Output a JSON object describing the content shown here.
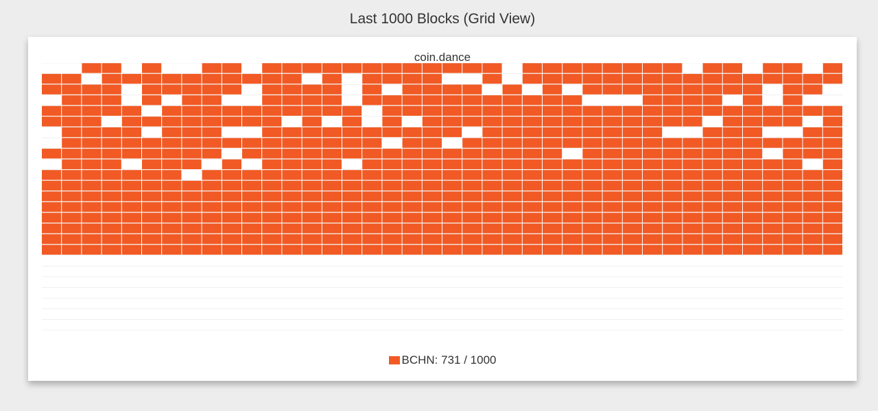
{
  "page_title": "Last 1000 Blocks (Grid View)",
  "chart_data": {
    "type": "heatmap",
    "title": "coin.dance",
    "columns": 40,
    "total_blocks": 1000,
    "series": [
      {
        "name": "BCHN",
        "count": 731,
        "color": "#f15a24"
      }
    ],
    "other_color": "#ffffff",
    "legend": {
      "label": "BCHN",
      "value": "731",
      "total": "1000",
      "placement": "bottom"
    },
    "cells": [
      0,
      0,
      1,
      1,
      0,
      1,
      0,
      0,
      1,
      1,
      0,
      1,
      1,
      1,
      1,
      1,
      1,
      1,
      1,
      1,
      1,
      1,
      1,
      0,
      1,
      1,
      1,
      1,
      1,
      1,
      1,
      1,
      0,
      1,
      1,
      0,
      1,
      1,
      0,
      1,
      1,
      1,
      0,
      1,
      1,
      1,
      1,
      1,
      1,
      1,
      1,
      1,
      1,
      0,
      1,
      0,
      1,
      1,
      1,
      1,
      0,
      0,
      1,
      0,
      1,
      1,
      1,
      1,
      1,
      1,
      1,
      1,
      1,
      1,
      1,
      1,
      1,
      1,
      1,
      1,
      1,
      1,
      1,
      1,
      0,
      1,
      1,
      1,
      1,
      1,
      0,
      1,
      1,
      1,
      1,
      0,
      1,
      0,
      1,
      1,
      1,
      1,
      0,
      1,
      0,
      1,
      0,
      1,
      1,
      1,
      1,
      1,
      1,
      1,
      1,
      1,
      0,
      1,
      1,
      0,
      0,
      1,
      1,
      1,
      0,
      1,
      0,
      1,
      1,
      0,
      0,
      1,
      1,
      1,
      1,
      0,
      1,
      1,
      1,
      1,
      1,
      1,
      1,
      1,
      1,
      1,
      1,
      0,
      0,
      0,
      1,
      1,
      1,
      1,
      0,
      1,
      0,
      1,
      0,
      0,
      1,
      1,
      1,
      1,
      1,
      0,
      1,
      1,
      1,
      1,
      1,
      1,
      1,
      1,
      1,
      1,
      0,
      1,
      1,
      1,
      1,
      1,
      1,
      1,
      1,
      1,
      1,
      1,
      1,
      1,
      1,
      1,
      1,
      1,
      1,
      1,
      1,
      1,
      1,
      1,
      1,
      1,
      1,
      0,
      1,
      1,
      1,
      1,
      1,
      1,
      1,
      1,
      0,
      1,
      0,
      1,
      0,
      1,
      0,
      1,
      1,
      1,
      1,
      1,
      1,
      1,
      1,
      1,
      1,
      1,
      1,
      1,
      1,
      0,
      1,
      1,
      1,
      1,
      0,
      1,
      0,
      1,
      1,
      1,
      1,
      0,
      1,
      1,
      1,
      0,
      0,
      1,
      1,
      1,
      1,
      1,
      1,
      1,
      1,
      1,
      1,
      0,
      1,
      1,
      1,
      1,
      1,
      1,
      1,
      1,
      1,
      0,
      0,
      1,
      1,
      1,
      0,
      0,
      1,
      1,
      0,
      1,
      1,
      1,
      1,
      1,
      1,
      1,
      1,
      1,
      1,
      1,
      1,
      1,
      1,
      1,
      1,
      0,
      1,
      1,
      0,
      1,
      1,
      1,
      1,
      1,
      1,
      1,
      1,
      1,
      1,
      1,
      1,
      1,
      1,
      1,
      1,
      1,
      1,
      1,
      1,
      1,
      1,
      1,
      1,
      1,
      1,
      1,
      1,
      0,
      1,
      1,
      1,
      1,
      1,
      1,
      1,
      1,
      1,
      1,
      1,
      1,
      1,
      1,
      1,
      1,
      0,
      1,
      1,
      1,
      1,
      1,
      1,
      1,
      1,
      1,
      0,
      1,
      1,
      1,
      0,
      1,
      1,
      1,
      0,
      1,
      1,
      1,
      0,
      1,
      0,
      1,
      1,
      1,
      1,
      0,
      1,
      1,
      1,
      1,
      1,
      1,
      1,
      1,
      1,
      1,
      1,
      1,
      1,
      1,
      1,
      1,
      1,
      1,
      1,
      1,
      1,
      1,
      0,
      1,
      1,
      1,
      1,
      1,
      1,
      1,
      1,
      0,
      1,
      1,
      1,
      1,
      1,
      1,
      1,
      1,
      1,
      1,
      1,
      1,
      1,
      1,
      1,
      1,
      1,
      1,
      1,
      1,
      1,
      1,
      1,
      1,
      1,
      1,
      1,
      1,
      1,
      1,
      1,
      1,
      1,
      1,
      1,
      1,
      1,
      1,
      1,
      1,
      1,
      1,
      1,
      1,
      1,
      1,
      1,
      1,
      1,
      1,
      1,
      1,
      1,
      1,
      1,
      1,
      1,
      1,
      1,
      1,
      1,
      1,
      1,
      1,
      1,
      1,
      1,
      1,
      1,
      1,
      1,
      1,
      1,
      1,
      1,
      1,
      1,
      1,
      1,
      1,
      1,
      1,
      1,
      1,
      1,
      1,
      1,
      1,
      1,
      1,
      1,
      1,
      1,
      1,
      1,
      1,
      1,
      1,
      1,
      1,
      1,
      1,
      1,
      1,
      1,
      1,
      1,
      1,
      1,
      1,
      1,
      1,
      1,
      1,
      1,
      1,
      1,
      1,
      1,
      1,
      1,
      1,
      1,
      1,
      1,
      1,
      1,
      1,
      1,
      1,
      1,
      1,
      1,
      1,
      1,
      1,
      1,
      1,
      1,
      1,
      1,
      1,
      1,
      1,
      1,
      1,
      1,
      1,
      1,
      1,
      1,
      1,
      1,
      1,
      1,
      1,
      1,
      1,
      1,
      1,
      1,
      1,
      1,
      1,
      1,
      1,
      1,
      1,
      1,
      1,
      1,
      1,
      1,
      1,
      1,
      1,
      1,
      1,
      1,
      1,
      1,
      1,
      1,
      1,
      1,
      1,
      1,
      1,
      1,
      1,
      1,
      1,
      1,
      1,
      1,
      1,
      1,
      1,
      1,
      1,
      1,
      1,
      1,
      1,
      1,
      1,
      1,
      1,
      1,
      1,
      1,
      1,
      1,
      1,
      1,
      1,
      1,
      1,
      1,
      1,
      1,
      1,
      1,
      1,
      1,
      1,
      1,
      1,
      1,
      1,
      1,
      1,
      1,
      1,
      1,
      1,
      1,
      1,
      1,
      1,
      1,
      1,
      1,
      1,
      1,
      1,
      1,
      1,
      1,
      1,
      1,
      1,
      1,
      1,
      1,
      1,
      1,
      1,
      1,
      1,
      1,
      1,
      1,
      1,
      1,
      1,
      1,
      1,
      1,
      1,
      1,
      1,
      1,
      1,
      1,
      1,
      1,
      1,
      1,
      1,
      1,
      1,
      1,
      1,
      1,
      1,
      1,
      1,
      1,
      1,
      1,
      1,
      1,
      1,
      1,
      1,
      1,
      1,
      1,
      1,
      1,
      1,
      1,
      1,
      1,
      1,
      1,
      1,
      1,
      1,
      1,
      1,
      0,
      0,
      0,
      0,
      0,
      0,
      0,
      0,
      0,
      0,
      0,
      0,
      0,
      0,
      0,
      0,
      0,
      0,
      0,
      0,
      0,
      0,
      0,
      0,
      0,
      0,
      0,
      0,
      0,
      0,
      0,
      0,
      0,
      0,
      0,
      0,
      0,
      0,
      0,
      0,
      0,
      0,
      0,
      0,
      0,
      0,
      0,
      0,
      0,
      0,
      0,
      0,
      0,
      0,
      0,
      0,
      0,
      0,
      0,
      0,
      0,
      0,
      0,
      0,
      0,
      0,
      0,
      0,
      0,
      0,
      0,
      0,
      0,
      0,
      0,
      0,
      0,
      0,
      0,
      0,
      0,
      0,
      0,
      0,
      0,
      0,
      0,
      0,
      0,
      0,
      0,
      0,
      0,
      0,
      0,
      0,
      0,
      0,
      0,
      0,
      0,
      0,
      0,
      0,
      0,
      0,
      0,
      0,
      0,
      0,
      0,
      0,
      0,
      0,
      0,
      0,
      0,
      0,
      0,
      0,
      0,
      0,
      0,
      0,
      0,
      0,
      0,
      0,
      0,
      0,
      0,
      0,
      0,
      0,
      0,
      0,
      0,
      0,
      0,
      0,
      0,
      0,
      0,
      0,
      0,
      0,
      0,
      0,
      0,
      0,
      0,
      0,
      0,
      0,
      0,
      0,
      0,
      0,
      0,
      0,
      0,
      0,
      0,
      0,
      0,
      0,
      0,
      0,
      0,
      0,
      0,
      0,
      0,
      0,
      0,
      0,
      0,
      0,
      0,
      0,
      0,
      0,
      0,
      0,
      0,
      0,
      0,
      0,
      0,
      0,
      0,
      0,
      0,
      0,
      0,
      0,
      0,
      0,
      0,
      0,
      0,
      0,
      0,
      0,
      0,
      0,
      0,
      0,
      0,
      0,
      0,
      0,
      0,
      0,
      0,
      0,
      0,
      0,
      0,
      0,
      0,
      0,
      0,
      0,
      0,
      0,
      0,
      0,
      0,
      0,
      0,
      0,
      0,
      0,
      0,
      0,
      0,
      0,
      0,
      0,
      0,
      0,
      0,
      0,
      0,
      0,
      0,
      0,
      0,
      0,
      0,
      0,
      0,
      0,
      0,
      0,
      0,
      0,
      0,
      0,
      0,
      0,
      0,
      0,
      0,
      0,
      0,
      0,
      0,
      0,
      0,
      0,
      0,
      0,
      0,
      0,
      0,
      0,
      0,
      0
    ]
  }
}
